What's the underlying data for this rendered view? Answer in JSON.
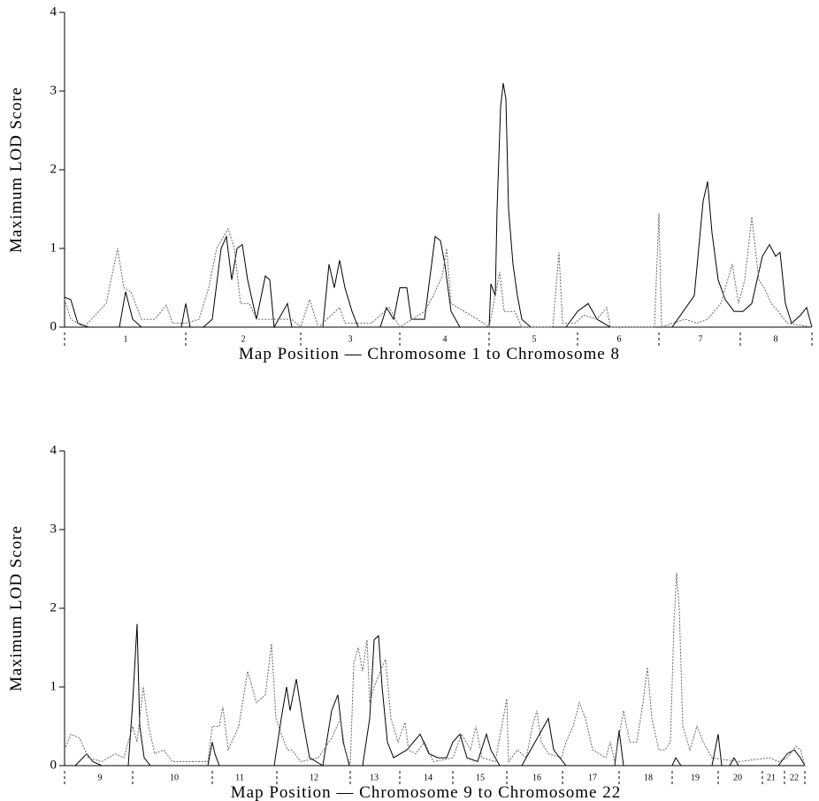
{
  "chart_data": [
    {
      "type": "line",
      "y_label": "Maximum LOD Score",
      "x_label": "Map Position — Chromosome 1 to Chromosome 8",
      "xlim": [
        0,
        845
      ],
      "ylim": [
        0,
        4
      ],
      "yticks": [
        0,
        1,
        2,
        3,
        4
      ],
      "xticks": [
        {
          "value": 69,
          "label": "1"
        },
        {
          "value": 202,
          "label": "2"
        },
        {
          "value": 323,
          "label": "3"
        },
        {
          "value": 430,
          "label": "4"
        },
        {
          "value": 531,
          "label": "5"
        },
        {
          "value": 627,
          "label": "6"
        },
        {
          "value": 719,
          "label": "7"
        },
        {
          "value": 804,
          "label": "8"
        }
      ],
      "chromosome_boundaries": [
        0,
        137,
        267,
        379,
        480,
        580,
        672,
        764,
        845
      ],
      "series": [
        {
          "color": "#000000",
          "linestyle": "solid",
          "x": [
            0,
            7,
            15,
            27,
            62,
            69,
            77,
            87,
            132,
            137,
            142,
            157,
            167,
            177,
            183,
            189,
            195,
            201,
            207,
            217,
            227,
            232,
            237,
            252,
            257,
            292,
            299,
            305,
            311,
            317,
            325,
            332,
            357,
            364,
            372,
            379,
            387,
            392,
            407,
            419,
            425,
            430,
            437,
            447,
            480,
            482,
            487,
            489,
            493,
            496,
            499,
            502,
            507,
            512,
            517,
            527,
            567,
            580,
            592,
            602,
            617,
            687,
            712,
            722,
            727,
            732,
            739,
            747,
            757,
            767,
            777,
            789,
            797,
            804,
            809,
            815,
            822,
            832,
            839,
            845
          ],
          "values": [
            0.38,
            0.35,
            0.05,
            0,
            0,
            0.45,
            0.1,
            0,
            0,
            0.3,
            0,
            0,
            0.1,
            1.0,
            1.15,
            0.6,
            1.0,
            1.05,
            0.6,
            0.1,
            0.65,
            0.6,
            0,
            0.3,
            0,
            0,
            0.8,
            0.5,
            0.85,
            0.5,
            0.2,
            0,
            0,
            0.25,
            0.1,
            0.5,
            0.5,
            0.1,
            0.1,
            1.15,
            1.1,
            0.8,
            0.2,
            0,
            0,
            0.55,
            0.4,
            1.5,
            2.8,
            3.1,
            2.9,
            1.5,
            0.8,
            0.4,
            0.1,
            0,
            0,
            0.2,
            0.3,
            0.1,
            0,
            0,
            0.4,
            1.6,
            1.85,
            1.2,
            0.6,
            0.35,
            0.2,
            0.2,
            0.3,
            0.9,
            1.05,
            0.9,
            0.95,
            0.3,
            0.05,
            0.15,
            0.25,
            0
          ]
        },
        {
          "color": "#666666",
          "linestyle": "dotted",
          "x": [
            0,
            7,
            22,
            47,
            60,
            67,
            75,
            87,
            102,
            115,
            122,
            137,
            152,
            163,
            172,
            185,
            192,
            199,
            209,
            217,
            237,
            257,
            267,
            277,
            287,
            311,
            317,
            347,
            367,
            379,
            407,
            417,
            427,
            432,
            437,
            452,
            467,
            480,
            492,
            497,
            509,
            517,
            552,
            559,
            563,
            577,
            587,
            602,
            613,
            617,
            667,
            672,
            675,
            687,
            702,
            715,
            727,
            742,
            755,
            762,
            769,
            777,
            785,
            791,
            799,
            807,
            817,
            845
          ],
          "values": [
            0.35,
            0.1,
            0,
            0.3,
            1.0,
            0.5,
            0.45,
            0.1,
            0.1,
            0.28,
            0.05,
            0.05,
            0.1,
            0.5,
            1.0,
            1.25,
            1.0,
            0.3,
            0.3,
            0.1,
            0.1,
            0.1,
            0,
            0.35,
            0,
            0.25,
            0.05,
            0.05,
            0.25,
            0,
            0.2,
            0.4,
            0.65,
            1.0,
            0.3,
            0.2,
            0.1,
            0,
            0.7,
            0.2,
            0.2,
            0,
            0,
            0.95,
            0.05,
            0.05,
            0.15,
            0.1,
            0.25,
            0,
            0,
            1.45,
            0,
            0.05,
            0.1,
            0.05,
            0.1,
            0.3,
            0.8,
            0.3,
            0.6,
            1.4,
            0.6,
            0.5,
            0.3,
            0.2,
            0.05,
            0
          ]
        }
      ]
    },
    {
      "type": "line",
      "y_label": "Maximum LOD Score",
      "x_label": "Map Position — Chromosome 9 to Chromosome 22",
      "xlim": [
        0,
        837
      ],
      "ylim": [
        0,
        4
      ],
      "yticks": [
        0,
        1,
        2,
        3,
        4
      ],
      "xticks": [
        {
          "value": 40,
          "label": "9"
        },
        {
          "value": 124,
          "label": "10"
        },
        {
          "value": 198,
          "label": "11"
        },
        {
          "value": 282,
          "label": "12"
        },
        {
          "value": 350,
          "label": "13"
        },
        {
          "value": 411,
          "label": "14"
        },
        {
          "value": 470,
          "label": "15"
        },
        {
          "value": 534,
          "label": "16"
        },
        {
          "value": 597,
          "label": "17"
        },
        {
          "value": 660,
          "label": "18"
        },
        {
          "value": 713,
          "label": "19"
        },
        {
          "value": 761,
          "label": "20"
        },
        {
          "value": 799,
          "label": "21"
        },
        {
          "value": 825,
          "label": "22"
        }
      ],
      "chromosome_boundaries": [
        0,
        77,
        167,
        240,
        323,
        379,
        439,
        500,
        563,
        627,
        687,
        739,
        789,
        814,
        837
      ],
      "series": [
        {
          "color": "#000000",
          "linestyle": "solid",
          "x": [
            0,
            12,
            25,
            32,
            42,
            72,
            77,
            82,
            85,
            90,
            97,
            162,
            167,
            170,
            175,
            237,
            245,
            251,
            255,
            262,
            269,
            277,
            292,
            302,
            309,
            315,
            322,
            337,
            345,
            350,
            355,
            359,
            365,
            372,
            387,
            402,
            412,
            422,
            432,
            439,
            447,
            455,
            467,
            477,
            482,
            492,
            517,
            547,
            553,
            567,
            622,
            627,
            632,
            687,
            691,
            697,
            732,
            739,
            743,
            752,
            757,
            762,
            807,
            817,
            825,
            832,
            837
          ],
          "values": [
            0,
            0,
            0.15,
            0.05,
            0,
            0,
            0.8,
            1.8,
            0.5,
            0.1,
            0,
            0,
            0.3,
            0.15,
            0,
            0,
            0.6,
            1.0,
            0.7,
            1.1,
            0.6,
            0.1,
            0,
            0.7,
            0.9,
            0.3,
            0,
            0,
            0.6,
            1.6,
            1.65,
            1.0,
            0.3,
            0.1,
            0.2,
            0.4,
            0.15,
            0.1,
            0.1,
            0.3,
            0.4,
            0.1,
            0.05,
            0.4,
            0.2,
            0,
            0,
            0.6,
            0.2,
            0,
            0,
            0.45,
            0,
            0,
            0.1,
            0,
            0,
            0.4,
            0,
            0,
            0.1,
            0,
            0,
            0.15,
            0.2,
            0.1,
            0
          ]
        },
        {
          "color": "#666666",
          "linestyle": "dotted",
          "x": [
            0,
            7,
            17,
            27,
            42,
            57,
            67,
            77,
            82,
            89,
            95,
            102,
            112,
            122,
            162,
            167,
            175,
            179,
            185,
            197,
            207,
            217,
            227,
            234,
            239,
            245,
            252,
            257,
            267,
            287,
            302,
            312,
            317,
            323,
            327,
            332,
            337,
            342,
            345,
            350,
            357,
            363,
            369,
            377,
            385,
            389,
            397,
            407,
            417,
            439,
            449,
            459,
            465,
            472,
            487,
            500,
            502,
            512,
            522,
            529,
            534,
            539,
            547,
            562,
            567,
            575,
            582,
            589,
            597,
            612,
            617,
            622,
            632,
            639,
            647,
            654,
            659,
            664,
            672,
            679,
            685,
            689,
            692,
            695,
            699,
            707,
            715,
            722,
            732,
            762,
            797,
            807,
            817,
            827,
            832,
            837
          ],
          "values": [
            0.2,
            0.4,
            0.35,
            0.1,
            0.05,
            0.15,
            0.1,
            0.5,
            0.3,
            1.0,
            0.5,
            0.15,
            0.2,
            0.05,
            0.05,
            0.5,
            0.5,
            0.75,
            0.2,
            0.5,
            1.2,
            0.8,
            0.9,
            1.55,
            0.6,
            0.4,
            0.2,
            0.2,
            0.05,
            0.1,
            0.35,
            0.6,
            0.2,
            0,
            1.3,
            1.5,
            1.2,
            1.6,
            0.8,
            1.0,
            1.2,
            1.35,
            0.6,
            0.3,
            0.55,
            0.2,
            0.15,
            0.3,
            0.05,
            0.1,
            0.4,
            0.2,
            0.5,
            0.1,
            0.05,
            0.85,
            0.05,
            0.2,
            0.1,
            0.5,
            0.7,
            0.3,
            0.15,
            0.1,
            0.3,
            0.5,
            0.8,
            0.6,
            0.2,
            0.1,
            0.3,
            0.05,
            0.7,
            0.3,
            0.3,
            0.8,
            1.25,
            0.6,
            0.2,
            0.2,
            0.3,
            1.8,
            2.45,
            2.0,
            0.5,
            0.2,
            0.5,
            0.3,
            0.1,
            0.05,
            0.1,
            0.05,
            0.1,
            0.25,
            0.2,
            0
          ]
        }
      ]
    }
  ]
}
